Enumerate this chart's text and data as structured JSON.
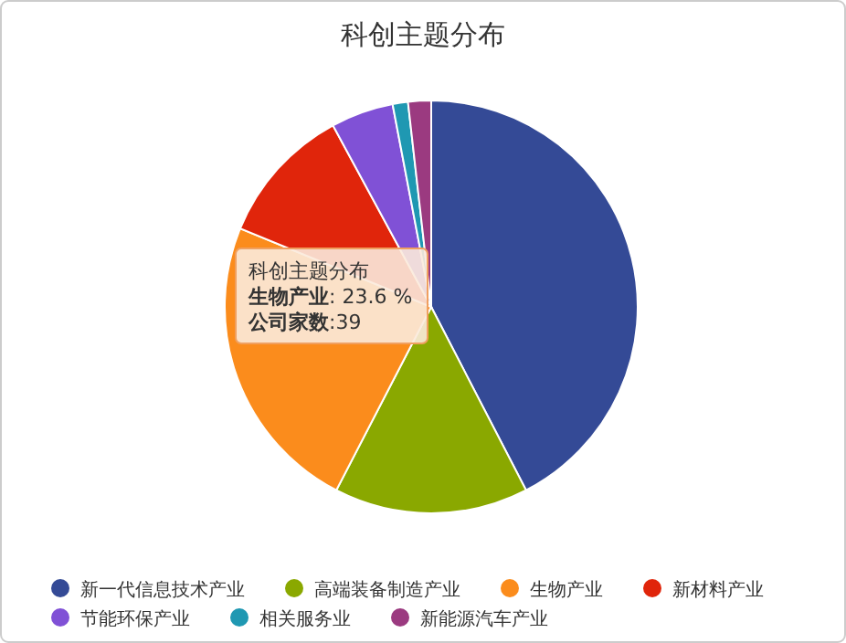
{
  "chart_data": {
    "type": "pie",
    "title": "科创主题分布",
    "categories": [
      "新一代信息技术产业",
      "高端装备制造产业",
      "生物产业",
      "新材料产业",
      "节能环保产业",
      "相关服务业",
      "新能源汽车产业"
    ],
    "values": [
      42.4,
      15.2,
      23.6,
      10.9,
      4.9,
      1.2,
      1.8
    ],
    "colors": [
      "#344a96",
      "#8aa800",
      "#fb8c1c",
      "#e0250b",
      "#8051d6",
      "#1f98b2",
      "#9b3a80"
    ],
    "legend": "bottom",
    "annotations": [
      "科创主题分布",
      "**生物产业**: 23.6 %",
      "**公司家数**:39"
    ]
  }
}
